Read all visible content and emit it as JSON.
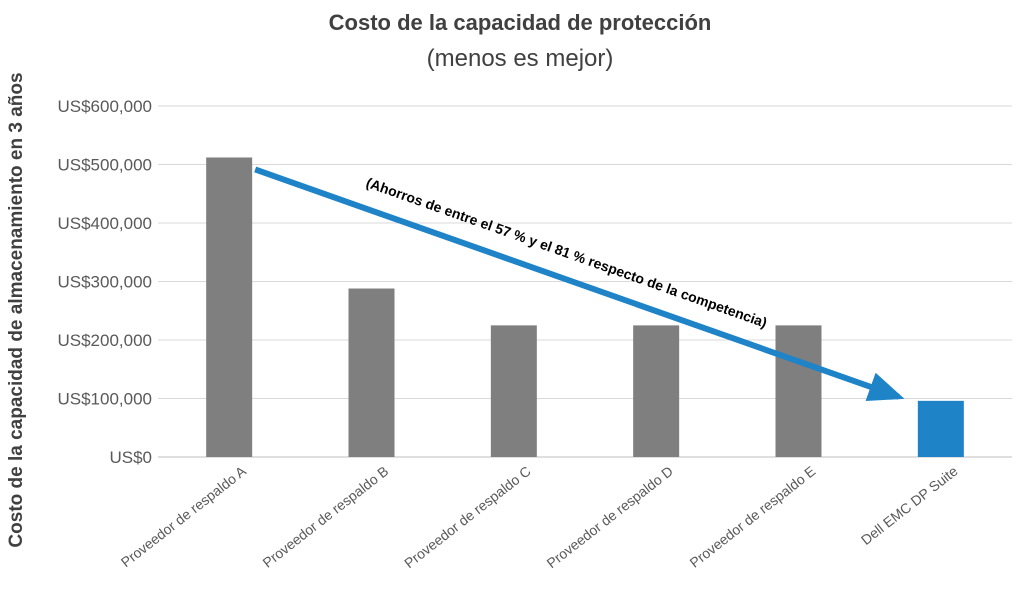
{
  "chart_data": {
    "type": "bar",
    "title": "Costo de la capacidad de protección",
    "subtitle": "(menos es mejor)",
    "ylabel": "Costo de la capacidad de almacenamiento en 3 años",
    "xlabel": "",
    "ylim": [
      0,
      600000
    ],
    "yticks": [
      0,
      100000,
      200000,
      300000,
      400000,
      500000,
      600000
    ],
    "ytick_labels": [
      "US$0",
      "US$100,000",
      "US$200,000",
      "US$300,000",
      "US$400,000",
      "US$500,000",
      "US$600,000"
    ],
    "categories": [
      "Proveedor de respaldo A",
      "Proveedor de respaldo B",
      "Proveedor de respaldo C",
      "Proveedor de respaldo D",
      "Proveedor de respaldo E",
      "Dell EMC DP Suite"
    ],
    "values": [
      512000,
      288000,
      225000,
      225000,
      225000,
      96000
    ],
    "grid": true,
    "legend": "none",
    "colors": {
      "competitor": "#7f7f7f",
      "highlight": "#1f83c8",
      "arrow": "#1f83c8",
      "grid": "#d9d9d9",
      "text": "#404040"
    },
    "annotation": {
      "text": "(Ahorros de entre el 57 % y el 81 % respecto de la competencia)",
      "from_category": 0,
      "to_category": 5
    }
  }
}
